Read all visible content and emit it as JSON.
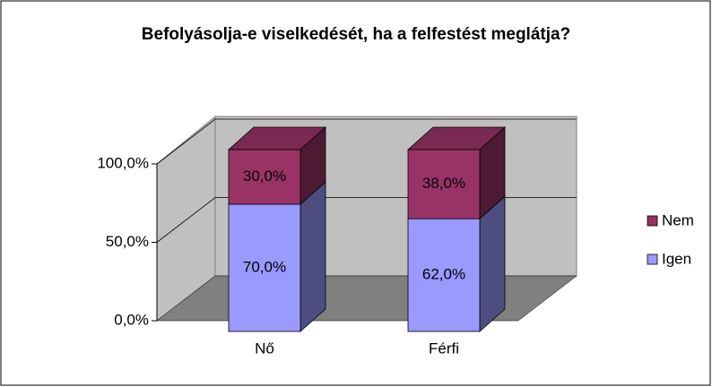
{
  "chart_data": {
    "type": "bar",
    "stacked": true,
    "title": "Befolyásolja-e viselkedését, ha a felfestést meglátja?",
    "categories": [
      "Nő",
      "Férfi"
    ],
    "series": [
      {
        "name": "Igen",
        "color": "#9999ff",
        "values": [
          70,
          62
        ],
        "value_labels": [
          "70,0%",
          "62,0%"
        ]
      },
      {
        "name": "Nem",
        "color": "#993366",
        "values": [
          30,
          38
        ],
        "value_labels": [
          "30,0%",
          "38,0%"
        ]
      }
    ],
    "ylim": [
      0,
      100
    ],
    "yticks": [
      {
        "value": 0,
        "label": "0,0%"
      },
      {
        "value": 50,
        "label": "50,0%"
      },
      {
        "value": 100,
        "label": "100,0%"
      }
    ],
    "grid": true,
    "legend": "right"
  }
}
